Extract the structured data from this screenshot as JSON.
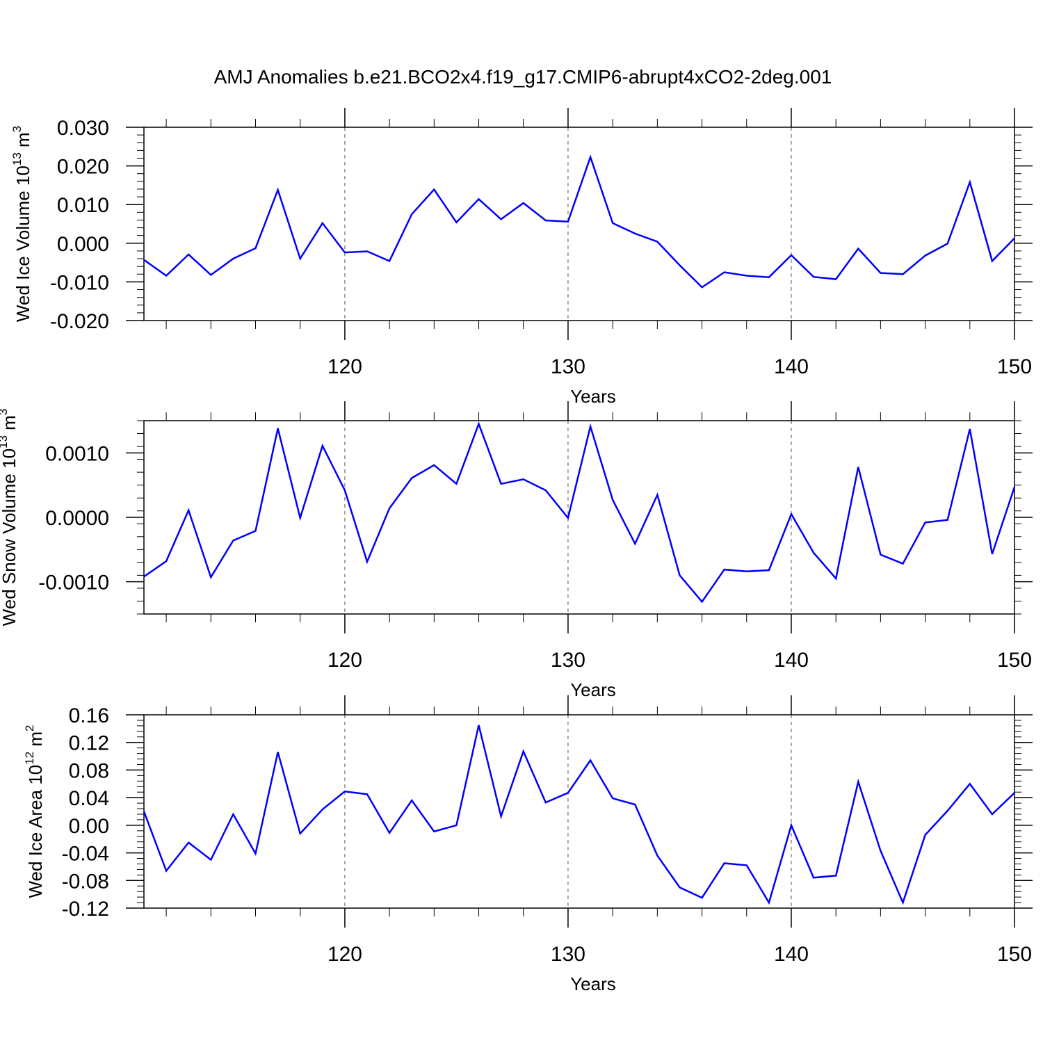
{
  "title": "AMJ Anomalies b.e21.BCO2x4.f19_g17.CMIP6-abrupt4xCO2-2deg.001",
  "colors": {
    "line": "#0000ff",
    "axis": "#000000",
    "grid": "#555555"
  },
  "chart_data": [
    {
      "type": "line",
      "xlabel": "Years",
      "ylabel": {
        "text": "Wed Ice Volume 10",
        "exp": "13",
        "unit": " m",
        "unit_exp": "3"
      },
      "xlim": [
        111,
        150
      ],
      "ylim": [
        -0.02,
        0.03
      ],
      "xticks": [
        120,
        130,
        140,
        150
      ],
      "xtick_labels": [
        "120",
        "130",
        "140",
        "150"
      ],
      "yticks": [
        -0.02,
        -0.01,
        0.0,
        0.01,
        0.02,
        0.03
      ],
      "ytick_labels": [
        "-0.020",
        "-0.010",
        "0.000",
        "0.010",
        "0.020",
        "0.030"
      ],
      "grid": "dashed vertical at major x ticks",
      "x": [
        111,
        112,
        113,
        114,
        115,
        116,
        117,
        118,
        119,
        120,
        121,
        122,
        123,
        124,
        125,
        126,
        127,
        128,
        129,
        130,
        131,
        132,
        133,
        134,
        135,
        136,
        137,
        138,
        139,
        140,
        141,
        142,
        143,
        144,
        145,
        146,
        147,
        148,
        149,
        150
      ],
      "y": [
        -0.0043,
        -0.0084,
        -0.0029,
        -0.0082,
        -0.004,
        -0.0013,
        0.0138,
        -0.004,
        0.0052,
        -0.0024,
        -0.0021,
        -0.0046,
        0.0075,
        0.0139,
        0.0054,
        0.0114,
        0.0062,
        0.0104,
        0.0059,
        0.0056,
        0.0223,
        0.0052,
        0.0025,
        0.0004,
        -0.0057,
        -0.0114,
        -0.0075,
        -0.0084,
        -0.0088,
        -0.0031,
        -0.0087,
        -0.0093,
        -0.0014,
        -0.0077,
        -0.008,
        -0.0032,
        -0.0001,
        0.0158,
        -0.0046,
        0.0013
      ]
    },
    {
      "type": "line",
      "xlabel": "Years",
      "ylabel": {
        "text": "Wed Snow Volume 10",
        "exp": "13",
        "unit": " m",
        "unit_exp": "3"
      },
      "xlim": [
        111,
        150
      ],
      "ylim": [
        -0.0015,
        0.0015
      ],
      "xticks": [
        120,
        130,
        140,
        150
      ],
      "xtick_labels": [
        "120",
        "130",
        "140",
        "150"
      ],
      "yticks": [
        -0.001,
        0.0,
        0.001
      ],
      "ytick_labels": [
        "-0.0010",
        "0.0000",
        "0.0010"
      ],
      "grid": "dashed vertical at major x ticks",
      "x": [
        111,
        112,
        113,
        114,
        115,
        116,
        117,
        118,
        119,
        120,
        121,
        122,
        123,
        124,
        125,
        126,
        127,
        128,
        129,
        130,
        131,
        132,
        133,
        134,
        135,
        136,
        137,
        138,
        139,
        140,
        141,
        142,
        143,
        144,
        145,
        146,
        147,
        148,
        149,
        150
      ],
      "y": [
        -0.00092,
        -0.00068,
        0.00011,
        -0.00093,
        -0.00036,
        -0.00021,
        0.00138,
        -1e-05,
        0.00111,
        0.00042,
        -0.00069,
        0.00014,
        0.00061,
        0.00081,
        0.00052,
        0.00145,
        0.00052,
        0.00059,
        0.00042,
        -1e-05,
        0.00141,
        0.00027,
        -0.00041,
        0.00035,
        -0.0009,
        -0.00131,
        -0.00081,
        -0.00084,
        -0.00082,
        5e-05,
        -0.00055,
        -0.00095,
        0.00078,
        -0.00058,
        -0.00072,
        -8e-05,
        -4e-05,
        0.00137,
        -0.00057,
        0.00047
      ]
    },
    {
      "type": "line",
      "xlabel": "Years",
      "ylabel": {
        "text": "Wed Ice Area 10",
        "exp": "12",
        "unit": " m",
        "unit_exp": "2"
      },
      "xlim": [
        111,
        150
      ],
      "ylim": [
        -0.12,
        0.16
      ],
      "xticks": [
        120,
        130,
        140,
        150
      ],
      "xtick_labels": [
        "120",
        "130",
        "140",
        "150"
      ],
      "yticks": [
        -0.12,
        -0.08,
        -0.04,
        0.0,
        0.04,
        0.08,
        0.12,
        0.16
      ],
      "ytick_labels": [
        "-0.12",
        "-0.08",
        "-0.04",
        "0.00",
        "0.04",
        "0.08",
        "0.12",
        "0.16"
      ],
      "grid": "dashed vertical at major x ticks",
      "x": [
        111,
        112,
        113,
        114,
        115,
        116,
        117,
        118,
        119,
        120,
        121,
        122,
        123,
        124,
        125,
        126,
        127,
        128,
        129,
        130,
        131,
        132,
        133,
        134,
        135,
        136,
        137,
        138,
        139,
        140,
        141,
        142,
        143,
        144,
        145,
        146,
        147,
        148,
        149,
        150
      ],
      "y": [
        0.02,
        -0.066,
        -0.025,
        -0.05,
        0.016,
        -0.041,
        0.106,
        -0.012,
        0.023,
        0.049,
        0.045,
        -0.011,
        0.036,
        -0.009,
        0.0,
        0.145,
        0.013,
        0.107,
        0.033,
        0.047,
        0.094,
        0.039,
        0.03,
        -0.044,
        -0.09,
        -0.105,
        -0.055,
        -0.058,
        -0.112,
        0.0,
        -0.076,
        -0.073,
        0.063,
        -0.037,
        -0.112,
        -0.014,
        0.021,
        0.06,
        0.016,
        0.047
      ]
    }
  ]
}
